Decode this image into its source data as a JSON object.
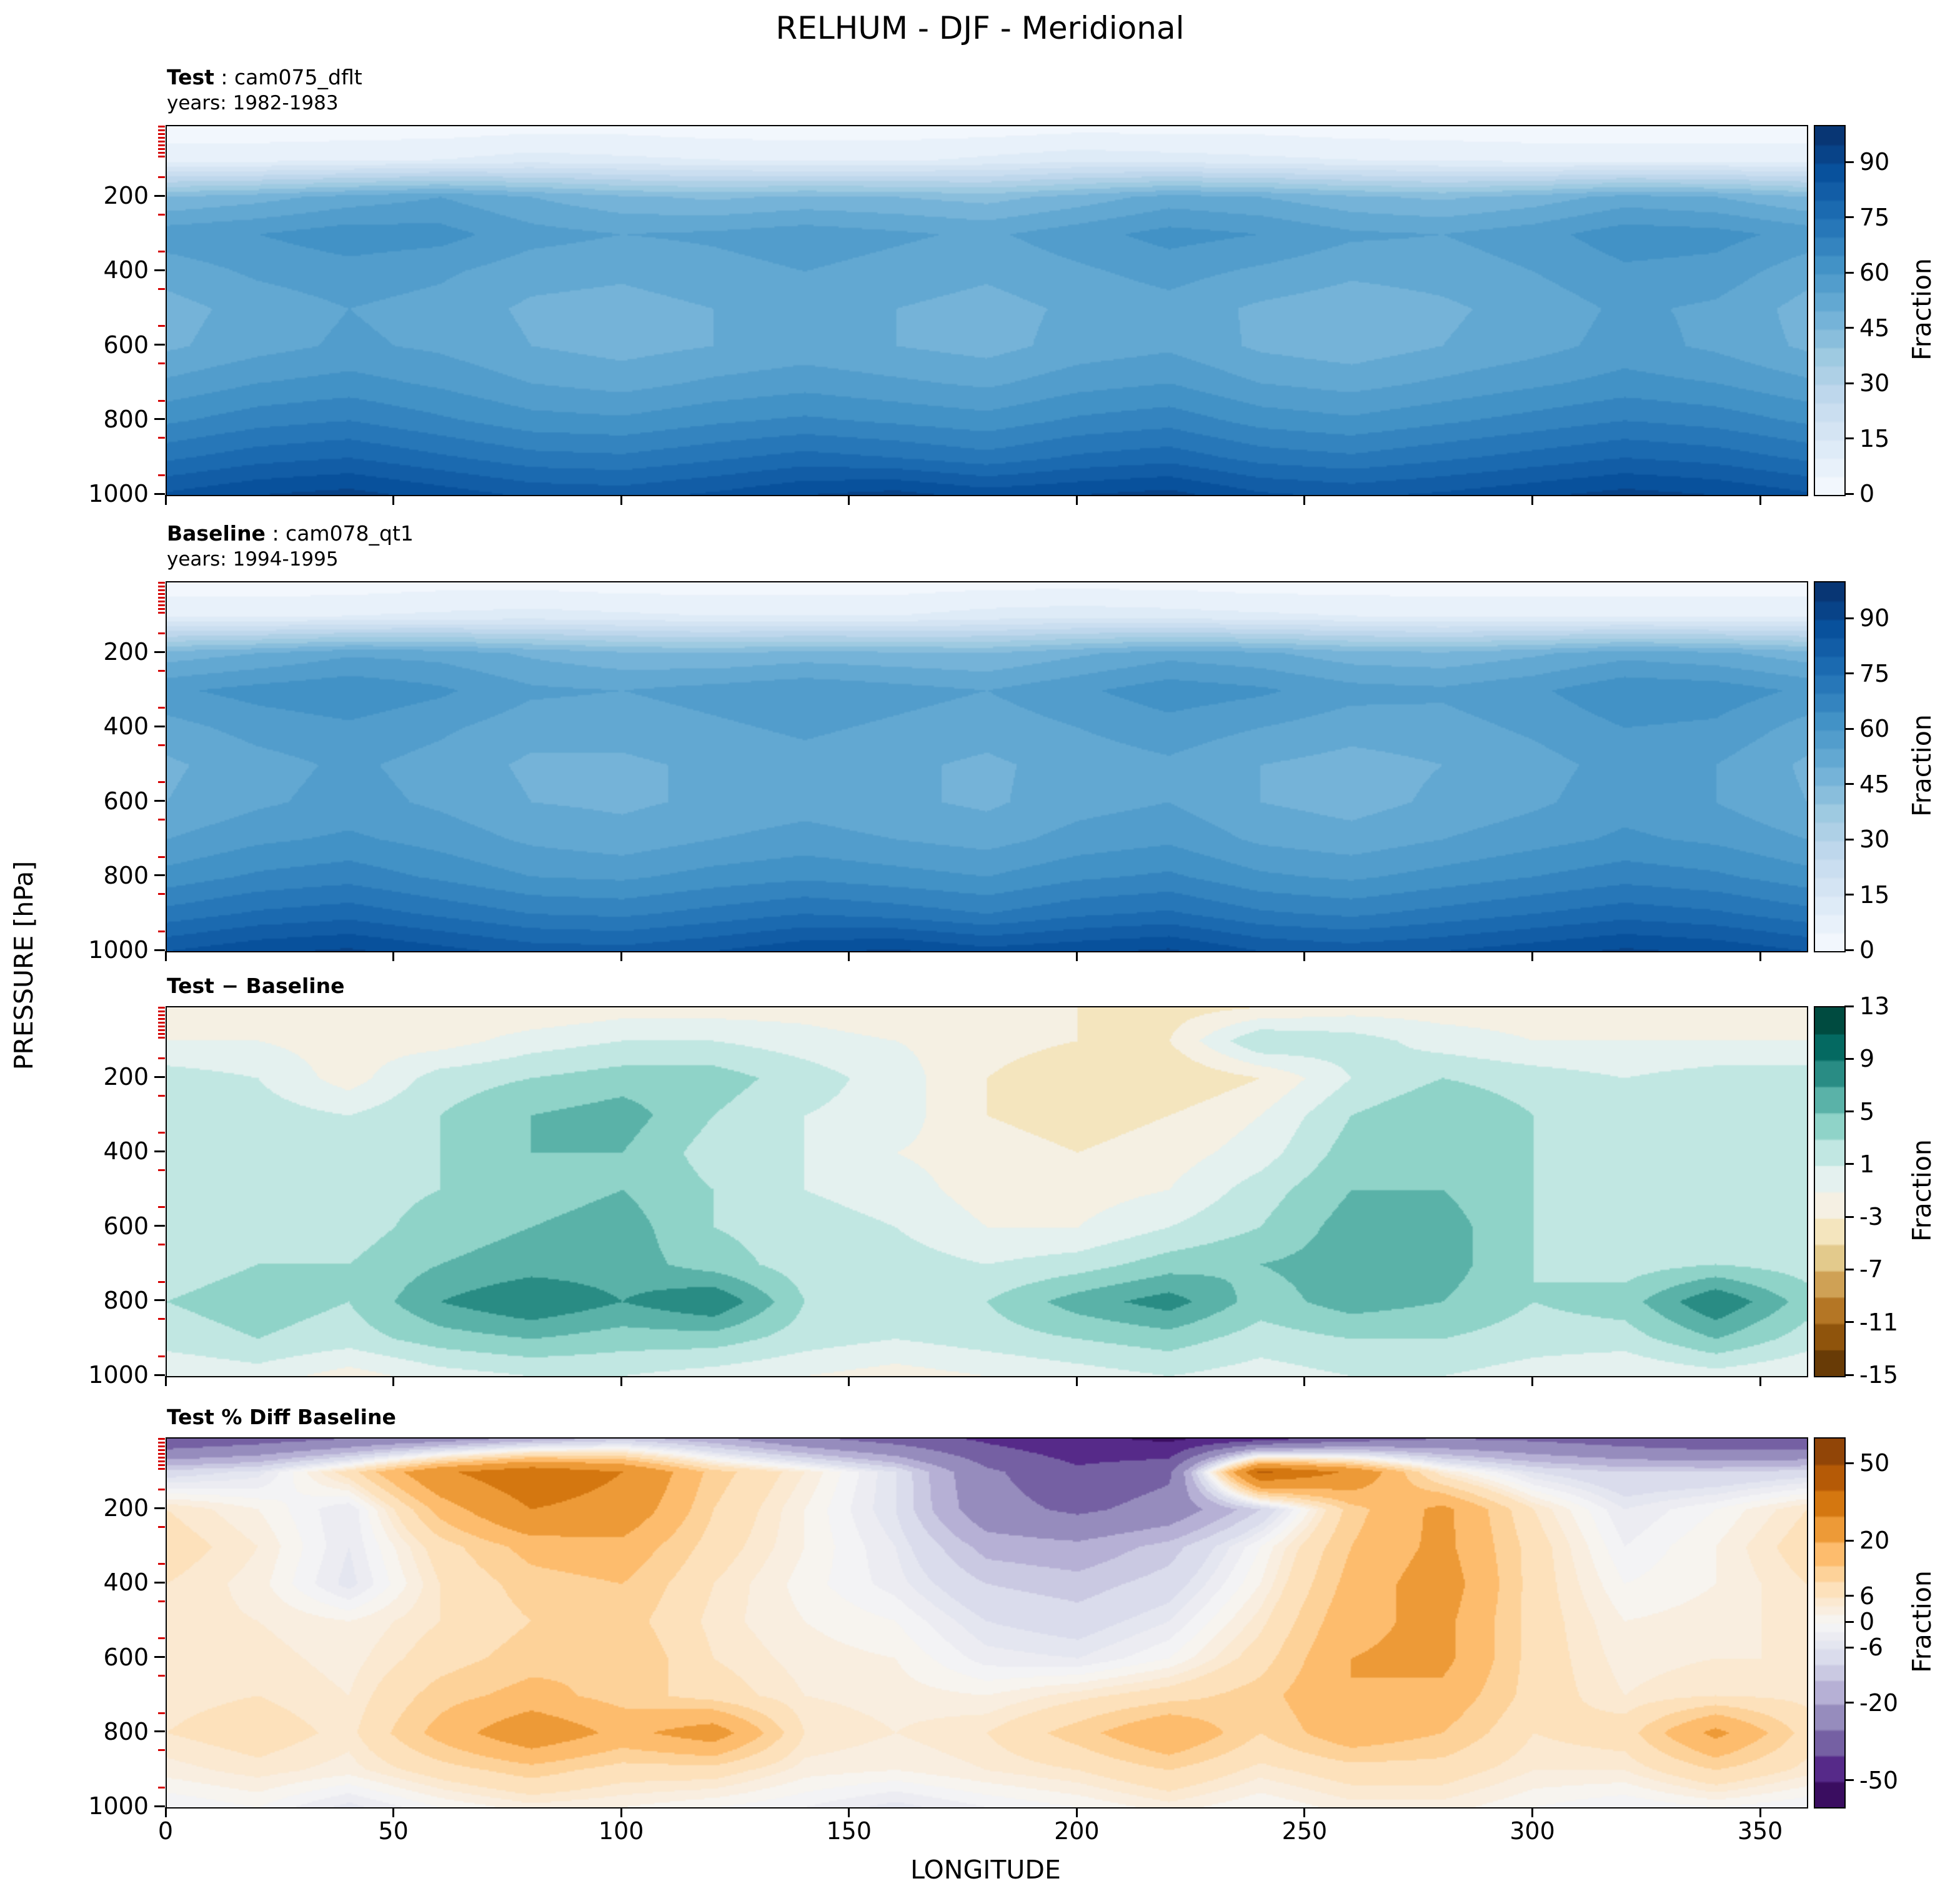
{
  "chart_data": {
    "type": "heatmap",
    "title": "RELHUM - DJF - Meridional",
    "xlabel": "LONGITUDE",
    "ylabel": "PRESSURE [hPa]",
    "x_ticks": [
      0,
      50,
      100,
      150,
      200,
      250,
      300,
      350
    ],
    "y_ticks": [
      200,
      400,
      600,
      800,
      1000
    ],
    "y_minor_ticks": [
      15,
      25,
      35,
      45,
      55,
      65,
      75,
      85,
      95,
      150,
      250,
      350,
      450,
      550,
      650,
      750,
      850,
      950
    ],
    "x": [
      0,
      20,
      40,
      60,
      80,
      100,
      120,
      140,
      160,
      180,
      200,
      220,
      240,
      260,
      280,
      300,
      320,
      340,
      360
    ],
    "pressure": [
      10,
      100,
      200,
      300,
      400,
      500,
      600,
      700,
      800,
      900,
      1000
    ],
    "panels": [
      {
        "id": "test",
        "label_bold": "Test",
        "label_rest": " : cam075_dflt",
        "subtitle": "years: 1982-1983",
        "colorbar_label": "Fraction",
        "cbar_ticks": [
          0,
          15,
          30,
          45,
          60,
          75,
          90
        ],
        "levels": [
          0,
          5,
          10,
          15,
          20,
          25,
          30,
          35,
          40,
          45,
          50,
          55,
          60,
          65,
          70,
          75,
          80,
          85,
          90,
          95,
          100
        ],
        "anchors": {
          "v": [
            0,
            100
          ],
          "t": [
            0,
            1
          ]
        },
        "cmap": [
          "#f7fbff",
          "#deebf7",
          "#c6dbef",
          "#9ecae1",
          "#6baed6",
          "#4292c6",
          "#2171b5",
          "#08519c",
          "#08306b"
        ],
        "values": [
          [
            2,
            2,
            2,
            2,
            3,
            3,
            2,
            2,
            2,
            2,
            3,
            3,
            3,
            2,
            2,
            2,
            2,
            2,
            2
          ],
          [
            8,
            8,
            9,
            10,
            12,
            11,
            10,
            9,
            9,
            11,
            13,
            12,
            11,
            10,
            9,
            8,
            8,
            8,
            8
          ],
          [
            45,
            48,
            52,
            55,
            50,
            46,
            44,
            46,
            45,
            43,
            47,
            52,
            50,
            46,
            44,
            47,
            52,
            50,
            45
          ],
          [
            58,
            60,
            63,
            62,
            57,
            55,
            56,
            58,
            56,
            54,
            58,
            62,
            60,
            56,
            55,
            58,
            63,
            62,
            58
          ],
          [
            52,
            56,
            58,
            56,
            52,
            51,
            53,
            55,
            53,
            51,
            54,
            57,
            54,
            51,
            52,
            55,
            59,
            58,
            52
          ],
          [
            48,
            52,
            55,
            53,
            49,
            48,
            50,
            52,
            50,
            48,
            51,
            53,
            49,
            47,
            49,
            52,
            56,
            54,
            48
          ],
          [
            49,
            53,
            56,
            54,
            50,
            48,
            50,
            52,
            50,
            48,
            52,
            54,
            49,
            47,
            50,
            53,
            57,
            54,
            49
          ],
          [
            56,
            60,
            62,
            59,
            55,
            53,
            56,
            58,
            56,
            54,
            58,
            60,
            55,
            53,
            56,
            59,
            62,
            60,
            56
          ],
          [
            64,
            68,
            70,
            66,
            62,
            61,
            64,
            66,
            64,
            62,
            66,
            68,
            63,
            61,
            64,
            67,
            70,
            68,
            64
          ],
          [
            74,
            78,
            80,
            76,
            72,
            71,
            74,
            77,
            75,
            72,
            76,
            78,
            73,
            71,
            74,
            77,
            80,
            78,
            74
          ],
          [
            86,
            90,
            92,
            88,
            84,
            83,
            86,
            90,
            92,
            88,
            90,
            92,
            86,
            84,
            86,
            89,
            92,
            90,
            86
          ]
        ]
      },
      {
        "id": "baseline",
        "label_bold": "Baseline",
        "label_rest": " : cam078_qt1",
        "subtitle": "years: 1994-1995",
        "colorbar_label": "Fraction",
        "cbar_ticks": [
          0,
          15,
          30,
          45,
          60,
          75,
          90
        ],
        "levels": [
          0,
          5,
          10,
          15,
          20,
          25,
          30,
          35,
          40,
          45,
          50,
          55,
          60,
          65,
          70,
          75,
          80,
          85,
          90,
          95,
          100
        ],
        "anchors": {
          "v": [
            0,
            100
          ],
          "t": [
            0,
            1
          ]
        },
        "cmap": [
          "#f7fbff",
          "#deebf7",
          "#c6dbef",
          "#9ecae1",
          "#6baed6",
          "#4292c6",
          "#2171b5",
          "#08519c",
          "#08306b"
        ],
        "values": [
          [
            2,
            2,
            2,
            3,
            3,
            2,
            2,
            2,
            2,
            3,
            3,
            3,
            2,
            2,
            2,
            2,
            2,
            2,
            2
          ],
          [
            9,
            9,
            10,
            11,
            12,
            11,
            10,
            10,
            10,
            12,
            13,
            12,
            11,
            10,
            9,
            9,
            9,
            9,
            9
          ],
          [
            47,
            50,
            54,
            53,
            49,
            46,
            45,
            47,
            46,
            45,
            49,
            53,
            51,
            47,
            46,
            49,
            53,
            51,
            47
          ],
          [
            59,
            62,
            64,
            61,
            56,
            55,
            57,
            59,
            57,
            55,
            59,
            63,
            61,
            57,
            56,
            59,
            64,
            63,
            59
          ],
          [
            53,
            57,
            59,
            56,
            52,
            52,
            54,
            56,
            54,
            52,
            55,
            58,
            55,
            52,
            53,
            56,
            60,
            59,
            53
          ],
          [
            49,
            53,
            56,
            53,
            49,
            49,
            51,
            53,
            51,
            49,
            52,
            54,
            50,
            48,
            50,
            53,
            57,
            55,
            49
          ],
          [
            50,
            54,
            57,
            54,
            50,
            49,
            51,
            53,
            51,
            49,
            53,
            55,
            50,
            48,
            51,
            54,
            58,
            55,
            50
          ],
          [
            55,
            59,
            61,
            58,
            54,
            52,
            55,
            57,
            55,
            53,
            57,
            59,
            54,
            52,
            55,
            58,
            61,
            59,
            55
          ],
          [
            62,
            66,
            68,
            64,
            60,
            59,
            62,
            64,
            62,
            60,
            64,
            66,
            61,
            59,
            62,
            65,
            68,
            66,
            62
          ],
          [
            72,
            76,
            78,
            74,
            70,
            69,
            72,
            75,
            73,
            70,
            74,
            76,
            71,
            69,
            72,
            75,
            78,
            76,
            72
          ],
          [
            85,
            89,
            91,
            87,
            83,
            82,
            85,
            89,
            91,
            87,
            89,
            91,
            85,
            83,
            85,
            88,
            91,
            89,
            85
          ]
        ]
      },
      {
        "id": "diff",
        "label_bold": "Test − Baseline",
        "label_rest": "",
        "subtitle": "",
        "colorbar_label": "Fraction",
        "cbar_ticks": [
          -15,
          -11,
          -7,
          -3,
          1,
          5,
          9,
          13
        ],
        "levels": [
          -15,
          -13,
          -11,
          -9,
          -7,
          -5,
          -3,
          -1,
          1,
          3,
          5,
          7,
          9,
          11,
          13
        ],
        "anchors": {
          "v": [
            -15,
            13
          ],
          "t": [
            0,
            1
          ]
        },
        "cmap": [
          "#543005",
          "#8c510a",
          "#bf812d",
          "#dfc27d",
          "#f6e8c3",
          "#f5f5f5",
          "#c7eae5",
          "#80cdc1",
          "#35978f",
          "#01665e",
          "#003c30"
        ],
        "values": [
          [
            -2,
            -2,
            -2,
            -3,
            -3,
            -2,
            -2,
            -2,
            -3,
            -3,
            -3,
            -4,
            -3,
            -2,
            -2,
            -2,
            -2,
            -2,
            -2
          ],
          [
            -1,
            -1,
            -2,
            -2,
            0,
            1,
            1,
            0,
            -1,
            -2,
            -3,
            -3,
            3,
            2,
            0,
            -1,
            -1,
            -1,
            -1
          ],
          [
            2,
            1,
            -2,
            2,
            3,
            4,
            4,
            2,
            0,
            -3,
            -5,
            -5,
            -3,
            1,
            3,
            2,
            1,
            2,
            2
          ],
          [
            3,
            2,
            1,
            3,
            5,
            6,
            3,
            1,
            0,
            -3,
            -4,
            -3,
            -1,
            3,
            5,
            3,
            1,
            2,
            3
          ],
          [
            2,
            2,
            1,
            3,
            5,
            5,
            2,
            1,
            -1,
            -2,
            -3,
            -2,
            0,
            4,
            5,
            3,
            1,
            1,
            2
          ],
          [
            1,
            2,
            2,
            3,
            4,
            5,
            3,
            1,
            0,
            -2,
            -2,
            -1,
            2,
            5,
            5,
            3,
            1,
            1,
            1
          ],
          [
            1,
            2,
            2,
            4,
            5,
            6,
            3,
            2,
            1,
            -1,
            -1,
            1,
            3,
            6,
            6,
            3,
            1,
            2,
            1
          ],
          [
            2,
            3,
            3,
            5,
            6,
            6,
            4,
            2,
            2,
            1,
            2,
            4,
            5,
            6,
            6,
            3,
            2,
            3,
            2
          ],
          [
            3,
            4,
            3,
            7,
            9,
            7,
            9,
            3,
            2,
            3,
            6,
            8,
            4,
            6,
            5,
            3,
            4,
            9,
            4
          ],
          [
            2,
            3,
            2,
            4,
            5,
            4,
            4,
            2,
            1,
            2,
            3,
            4,
            2,
            3,
            3,
            2,
            2,
            5,
            2
          ],
          [
            -1,
            0,
            -2,
            0,
            1,
            1,
            0,
            -1,
            -2,
            -1,
            0,
            1,
            0,
            1,
            1,
            0,
            -1,
            0,
            -1
          ]
        ]
      },
      {
        "id": "pctdiff",
        "label_bold": "Test % Diff Baseline",
        "label_rest": "",
        "subtitle": "",
        "colorbar_label": "Fraction",
        "cbar_ticks": [
          -50,
          -20,
          -6,
          0,
          6,
          20,
          50
        ],
        "levels": [
          -70,
          -50,
          -40,
          -30,
          -20,
          -14,
          -10,
          -6,
          -4,
          -2,
          0,
          2,
          4,
          6,
          10,
          14,
          20,
          30,
          40,
          50,
          70
        ],
        "anchors": {
          "v": [
            -70,
            -50,
            -20,
            -6,
            0,
            6,
            20,
            50,
            70
          ],
          "t": [
            0,
            0.07,
            0.28,
            0.43,
            0.5,
            0.57,
            0.72,
            0.93,
            1
          ]
        },
        "cmap": [
          "#2d004b",
          "#542788",
          "#8073ac",
          "#b2abd2",
          "#d8daeb",
          "#f7f7f7",
          "#fee0b6",
          "#fdb863",
          "#e08214",
          "#b35806",
          "#7f3b08"
        ],
        "values": [
          [
            -40,
            -35,
            -30,
            -25,
            -18,
            -12,
            -18,
            -28,
            -35,
            -42,
            -48,
            -52,
            -45,
            -35,
            -30,
            -32,
            -36,
            -40,
            -40
          ],
          [
            -8,
            -5,
            8,
            28,
            38,
            30,
            12,
            4,
            -6,
            -28,
            -38,
            -32,
            42,
            28,
            4,
            -6,
            -10,
            -10,
            -8
          ],
          [
            6,
            2,
            -4,
            16,
            30,
            26,
            10,
            2,
            -6,
            -26,
            -32,
            -26,
            -10,
            12,
            22,
            6,
            -4,
            0,
            6
          ],
          [
            8,
            4,
            -4,
            8,
            16,
            18,
            8,
            2,
            -4,
            -16,
            -18,
            -12,
            0,
            14,
            22,
            8,
            -2,
            2,
            8
          ],
          [
            6,
            3,
            -5,
            6,
            12,
            14,
            6,
            1,
            -3,
            -10,
            -12,
            -8,
            2,
            16,
            24,
            8,
            0,
            2,
            6
          ],
          [
            5,
            4,
            2,
            6,
            10,
            12,
            5,
            2,
            0,
            -6,
            -8,
            -4,
            5,
            18,
            22,
            8,
            2,
            3,
            5
          ],
          [
            4,
            5,
            3,
            8,
            12,
            14,
            6,
            3,
            2,
            -3,
            -4,
            0,
            8,
            20,
            22,
            8,
            3,
            4,
            4
          ],
          [
            5,
            6,
            4,
            12,
            16,
            12,
            8,
            4,
            3,
            2,
            5,
            8,
            12,
            20,
            18,
            8,
            4,
            6,
            5
          ],
          [
            6,
            8,
            5,
            16,
            26,
            18,
            24,
            6,
            4,
            6,
            12,
            20,
            10,
            18,
            14,
            6,
            8,
            22,
            8
          ],
          [
            3,
            5,
            3,
            8,
            12,
            8,
            8,
            3,
            2,
            4,
            6,
            10,
            5,
            8,
            8,
            4,
            4,
            10,
            5
          ],
          [
            -2,
            0,
            -5,
            0,
            3,
            2,
            0,
            -2,
            -5,
            -2,
            0,
            3,
            0,
            3,
            3,
            0,
            -2,
            0,
            -2
          ]
        ]
      }
    ]
  }
}
